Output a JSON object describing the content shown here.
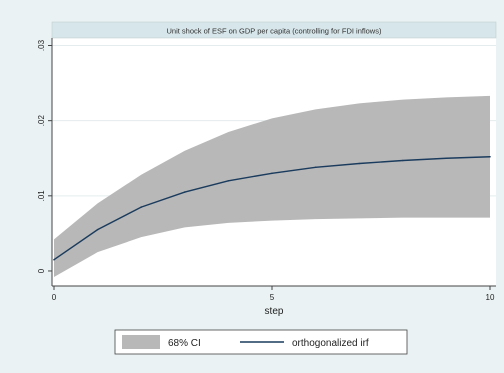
{
  "chart_data": {
    "type": "area",
    "title": "Unit shock of ESF on GDP per capita (controlling for FDI inflows)",
    "xlabel": "step",
    "ylabel": "",
    "xlim": [
      0,
      10
    ],
    "ylim": [
      -0.002,
      0.031
    ],
    "x_ticks": [
      0,
      5,
      10
    ],
    "x_tick_labels": [
      "0",
      "5",
      "10"
    ],
    "y_ticks": [
      0,
      0.01,
      0.02,
      0.03
    ],
    "y_tick_labels": [
      "0",
      ".01",
      ".02",
      ".03"
    ],
    "grid": "horizontal",
    "legend_position": "bottom",
    "x": [
      0,
      1,
      2,
      3,
      4,
      5,
      6,
      7,
      8,
      9,
      10
    ],
    "series": [
      {
        "name": "orthogonalized irf",
        "kind": "line",
        "values": [
          0.0015,
          0.0055,
          0.0085,
          0.0105,
          0.012,
          0.013,
          0.0138,
          0.0143,
          0.0147,
          0.015,
          0.0152
        ]
      },
      {
        "name": "68% CI",
        "kind": "band",
        "lower": [
          -0.0008,
          0.0025,
          0.0045,
          0.0058,
          0.0064,
          0.0067,
          0.0069,
          0.007,
          0.0071,
          0.0071,
          0.0071
        ],
        "upper": [
          0.0042,
          0.009,
          0.0128,
          0.016,
          0.0185,
          0.0203,
          0.0215,
          0.0223,
          0.0228,
          0.0231,
          0.0233
        ]
      }
    ],
    "colors": {
      "background": "#eaf2f3",
      "plot_area": "#ffffff",
      "band": "#b8b8b8",
      "line": "#1a3b5d",
      "title_bar": "#d7e6ea",
      "grid": "#e4ecee"
    }
  }
}
